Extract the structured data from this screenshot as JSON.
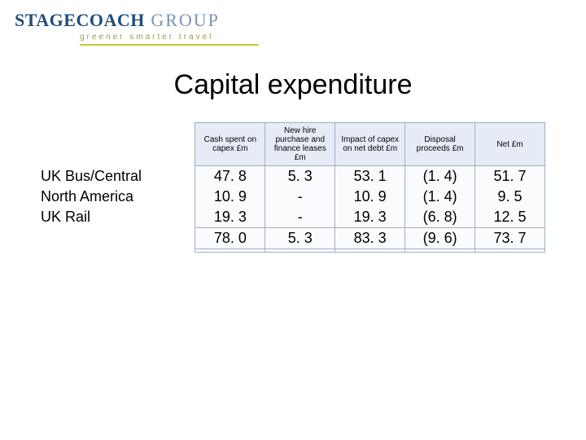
{
  "logo": {
    "brand_bold": "STAGECOACH",
    "brand_light": " GROUP",
    "tagline": "greener  smarter  travel"
  },
  "title": "Capital expenditure",
  "table": {
    "headers": [
      "Cash spent on capex £m",
      "New hire purchase and finance leases £m",
      "Impact of capex on net debt £m",
      "Disposal proceeds £m",
      "Net £m"
    ],
    "rows": [
      {
        "label": "UK Bus/Central",
        "cells": [
          "47. 8",
          "5. 3",
          "53. 1",
          "(1. 4)",
          "51. 7"
        ]
      },
      {
        "label": "North America",
        "cells": [
          "10. 9",
          "-",
          "10. 9",
          "(1. 4)",
          "9. 5"
        ]
      },
      {
        "label": "UK Rail",
        "cells": [
          "19. 3",
          "-",
          "19. 3",
          "(6. 8)",
          "12. 5"
        ]
      }
    ],
    "total": {
      "label": "",
      "cells": [
        "78. 0",
        "5. 3",
        "83. 3",
        "(9. 6)",
        "73. 7"
      ]
    }
  },
  "colors": {
    "header_bg": "#e6ecf5",
    "cell_border": "#9cb0c8",
    "logo_blue": "#1f4e79",
    "tagline_olive": "#9a9a50"
  }
}
